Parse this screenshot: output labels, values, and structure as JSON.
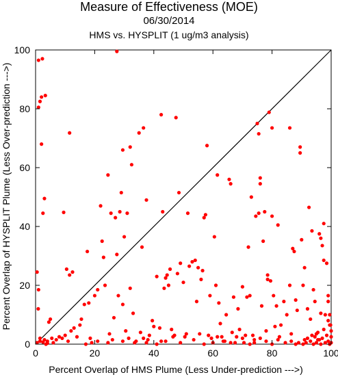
{
  "titles": {
    "title": "Measure of Effectiveness (MOE)",
    "date": "06/30/2014",
    "subtitle": "HMS vs. HYSPLIT  (1 ug/m3 analysis)"
  },
  "chart_data": {
    "type": "scatter",
    "title": "Measure of Effectiveness (MOE)",
    "xlabel": "Percent Overlap of HMS Plume (Less Under-prediction --->)",
    "ylabel": "Percent Overlap of HYSPLIT Plume (Less Over-prediction --->)",
    "xlim": [
      0,
      100
    ],
    "ylim": [
      0,
      100
    ],
    "xticks": [
      0,
      20,
      40,
      60,
      80,
      100
    ],
    "yticks": [
      0,
      20,
      40,
      60,
      80,
      100
    ],
    "grid": false,
    "diagonal_line": true,
    "marker_color": "#ff0000",
    "series": [
      {
        "points": [
          [
            1.0,
            96.5
          ],
          [
            2.3,
            97.0
          ],
          [
            1.0,
            80.5
          ],
          [
            1.5,
            82.5
          ],
          [
            2.0,
            84.0
          ],
          [
            3.3,
            84.5
          ],
          [
            2.0,
            68.0
          ],
          [
            3.0,
            49.5
          ],
          [
            2.5,
            44.5
          ],
          [
            0.5,
            24.5
          ],
          [
            1.0,
            18.5
          ],
          [
            0.9,
            12.0
          ],
          [
            1.5,
            1.0
          ],
          [
            2.5,
            0.7
          ],
          [
            3.5,
            0.0
          ],
          [
            4.0,
            0.3
          ],
          [
            4.5,
            7.5
          ],
          [
            5.0,
            8.5
          ],
          [
            5.5,
            2.0
          ],
          [
            6.0,
            0.5
          ],
          [
            7.0,
            1.5
          ],
          [
            8.0,
            2.5
          ],
          [
            9.0,
            2.0
          ],
          [
            9.5,
            44.8
          ],
          [
            10.5,
            25.5
          ],
          [
            11.5,
            71.8
          ],
          [
            11.5,
            23.5
          ],
          [
            12.5,
            24.5
          ],
          [
            10.0,
            3.0
          ],
          [
            11.0,
            1.0
          ],
          [
            12.0,
            4.5
          ],
          [
            13.0,
            5.5
          ],
          [
            14.0,
            2.5
          ],
          [
            15.0,
            6.5
          ],
          [
            15.5,
            8.5
          ],
          [
            16.5,
            13.5
          ],
          [
            17.5,
            31.5
          ],
          [
            18.0,
            14.0
          ],
          [
            18.5,
            2.0
          ],
          [
            19.0,
            0.5
          ],
          [
            20.0,
            16.5
          ],
          [
            21.0,
            18.5
          ],
          [
            22.0,
            47.0
          ],
          [
            22.5,
            35.0
          ],
          [
            23.0,
            29.5
          ],
          [
            23.5,
            20.0
          ],
          [
            24.5,
            57.5
          ],
          [
            25.0,
            3.5
          ],
          [
            26.0,
            1.5
          ],
          [
            25.5,
            44.5
          ],
          [
            26.5,
            9.0
          ],
          [
            27.0,
            43.0
          ],
          [
            27.5,
            30.5
          ],
          [
            27.5,
            99.5
          ],
          [
            28.0,
            16.5
          ],
          [
            28.5,
            45.0
          ],
          [
            29.0,
            51.5
          ],
          [
            29.5,
            66.0
          ],
          [
            29.5,
            13.5
          ],
          [
            30.0,
            36.5
          ],
          [
            30.5,
            4.5
          ],
          [
            31.0,
            44.5
          ],
          [
            31.5,
            2.0
          ],
          [
            32.0,
            67.0
          ],
          [
            32.5,
            61.0
          ],
          [
            32.0,
            19.0
          ],
          [
            33.0,
            10.5
          ],
          [
            34.0,
            1.0
          ],
          [
            35.0,
            71.8
          ],
          [
            35.5,
            4.0
          ],
          [
            36.0,
            33.0
          ],
          [
            36.5,
            73.5
          ],
          [
            37.5,
            49.0
          ],
          [
            37.5,
            0.5
          ],
          [
            38.0,
            1.5
          ],
          [
            38.5,
            3.0
          ],
          [
            39.5,
            8.0
          ],
          [
            40.0,
            6.0
          ],
          [
            41.0,
            23.0
          ],
          [
            42.0,
            5.5
          ],
          [
            42.5,
            78.0
          ],
          [
            42.5,
            1.0
          ],
          [
            43.0,
            45.0
          ],
          [
            43.5,
            19.0
          ],
          [
            44.0,
            22.5
          ],
          [
            44.5,
            23.5
          ],
          [
            45.0,
            20.0
          ],
          [
            45.5,
            25.5
          ],
          [
            46.0,
            5.0
          ],
          [
            46.5,
            2.5
          ],
          [
            47.0,
            3.0
          ],
          [
            47.5,
            77.0
          ],
          [
            48.0,
            24.0
          ],
          [
            48.5,
            51.5
          ],
          [
            49.0,
            27.5
          ],
          [
            50.0,
            21.0
          ],
          [
            50.5,
            2.5
          ],
          [
            51.0,
            3.5
          ],
          [
            51.5,
            44.5
          ],
          [
            52.0,
            26.5
          ],
          [
            53.0,
            28.0
          ],
          [
            54.0,
            28.5
          ],
          [
            54.5,
            14.5
          ],
          [
            55.0,
            26.0
          ],
          [
            55.5,
            3.5
          ],
          [
            56.0,
            22.0
          ],
          [
            56.5,
            25.0
          ],
          [
            57.0,
            43.0
          ],
          [
            57.5,
            44.0
          ],
          [
            58.0,
            67.5
          ],
          [
            58.5,
            3.0
          ],
          [
            59.0,
            16.5
          ],
          [
            59.5,
            2.0
          ],
          [
            60.0,
            0.5
          ],
          [
            60.5,
            36.5
          ],
          [
            61.0,
            20.0
          ],
          [
            61.5,
            57.5
          ],
          [
            62.0,
            14.0
          ],
          [
            62.5,
            7.0
          ],
          [
            63.0,
            2.5
          ],
          [
            64.0,
            1.0
          ],
          [
            64.5,
            10.0
          ],
          [
            65.5,
            56.0
          ],
          [
            66.0,
            54.5
          ],
          [
            66.5,
            4.0
          ],
          [
            67.0,
            16.0
          ],
          [
            67.5,
            0.5
          ],
          [
            68.0,
            2.5
          ],
          [
            68.5,
            12.0
          ],
          [
            69.0,
            5.0
          ],
          [
            70.0,
            19.5
          ],
          [
            70.5,
            0.5
          ],
          [
            71.0,
            3.0
          ],
          [
            71.5,
            16.0
          ],
          [
            72.0,
            33.0
          ],
          [
            72.5,
            16.5
          ],
          [
            73.0,
            50.0
          ],
          [
            73.5,
            3.0
          ],
          [
            74.0,
            0.5
          ],
          [
            74.5,
            43.5
          ],
          [
            75.0,
            75.0
          ],
          [
            75.5,
            44.5
          ],
          [
            75.5,
            71.5
          ],
          [
            76.0,
            54.5
          ],
          [
            76.0,
            56.5
          ],
          [
            76.5,
            13.0
          ],
          [
            77.0,
            35.0
          ],
          [
            77.5,
            45.0
          ],
          [
            78.0,
            4.5
          ],
          [
            78.5,
            23.5
          ],
          [
            78.5,
            22.0
          ],
          [
            79.0,
            78.8
          ],
          [
            79.5,
            21.5
          ],
          [
            80.0,
            73.5
          ],
          [
            80.0,
            43.5
          ],
          [
            80.5,
            16.5
          ],
          [
            81.0,
            6.0
          ],
          [
            81.5,
            13.0
          ],
          [
            82.0,
            40.5
          ],
          [
            82.5,
            2.5
          ],
          [
            83.0,
            6.5
          ],
          [
            84.0,
            14.5
          ],
          [
            85.0,
            10.0
          ],
          [
            86.0,
            73.5
          ],
          [
            86.0,
            20.0
          ],
          [
            86.5,
            3.5
          ],
          [
            87.0,
            32.5
          ],
          [
            87.5,
            31.5
          ],
          [
            88.0,
            15.0
          ],
          [
            88.5,
            11.5
          ],
          [
            89.0,
            0.5
          ],
          [
            89.5,
            67.0
          ],
          [
            89.5,
            65.0
          ],
          [
            90.0,
            35.5
          ],
          [
            90.5,
            20.0
          ],
          [
            91.0,
            26.0
          ],
          [
            91.5,
            0.5
          ],
          [
            92.0,
            12.0
          ],
          [
            92.5,
            46.5
          ],
          [
            93.0,
            8.5
          ],
          [
            93.5,
            38.5
          ],
          [
            94.0,
            18.5
          ],
          [
            94.5,
            14.5
          ],
          [
            95.0,
            3.5
          ],
          [
            95.5,
            1.5
          ],
          [
            96.0,
            37.5
          ],
          [
            96.5,
            36.0
          ],
          [
            96.5,
            10.5
          ],
          [
            97.0,
            33.5
          ],
          [
            97.5,
            28.5
          ],
          [
            97.5,
            41.0
          ],
          [
            98.0,
            10.0
          ],
          [
            98.5,
            27.5
          ],
          [
            99.0,
            16.5
          ],
          [
            99.0,
            14.5
          ],
          [
            99.5,
            10.0
          ],
          [
            99.5,
            6.5
          ],
          [
            92.0,
            2.0
          ],
          [
            93.0,
            1.0
          ],
          [
            93.5,
            3.0
          ],
          [
            94.0,
            0.0
          ],
          [
            94.5,
            2.5
          ],
          [
            95.0,
            0.5
          ],
          [
            95.5,
            4.0
          ],
          [
            96.0,
            1.5
          ],
          [
            96.5,
            0.0
          ],
          [
            97.0,
            2.0
          ],
          [
            97.5,
            5.0
          ],
          [
            98.0,
            0.5
          ],
          [
            98.5,
            3.0
          ],
          [
            99.0,
            1.0
          ],
          [
            99.5,
            0.0
          ],
          [
            100.0,
            2.5
          ],
          [
            100.0,
            4.5
          ],
          [
            99.8,
            6.5
          ],
          [
            100.0,
            0.5
          ],
          [
            99.0,
            8.0
          ],
          [
            90.5,
            0.0
          ],
          [
            91.0,
            1.5
          ],
          [
            88.0,
            0.0
          ],
          [
            86.5,
            1.0
          ],
          [
            84.5,
            0.5
          ],
          [
            82.0,
            1.5
          ],
          [
            80.0,
            0.0
          ],
          [
            78.0,
            1.0
          ],
          [
            76.0,
            2.0
          ],
          [
            74.0,
            1.5
          ],
          [
            72.5,
            0.0
          ],
          [
            70.0,
            2.0
          ],
          [
            66.0,
            0.5
          ],
          [
            63.5,
            1.0
          ],
          [
            61.5,
            2.5
          ],
          [
            57.0,
            0.0
          ],
          [
            53.5,
            1.5
          ],
          [
            49.0,
            0.5
          ],
          [
            44.0,
            1.0
          ],
          [
            41.0,
            0.0
          ],
          [
            36.5,
            2.0
          ],
          [
            33.5,
            0.5
          ],
          [
            29.5,
            1.0
          ],
          [
            24.5,
            0.5
          ],
          [
            21.0,
            1.0
          ],
          [
            17.0,
            0.0
          ],
          [
            3.0,
            1.5
          ],
          [
            0.5,
            0.5
          ],
          [
            1.5,
            2.0
          ],
          [
            4.0,
            1.0
          ]
        ]
      }
    ]
  }
}
